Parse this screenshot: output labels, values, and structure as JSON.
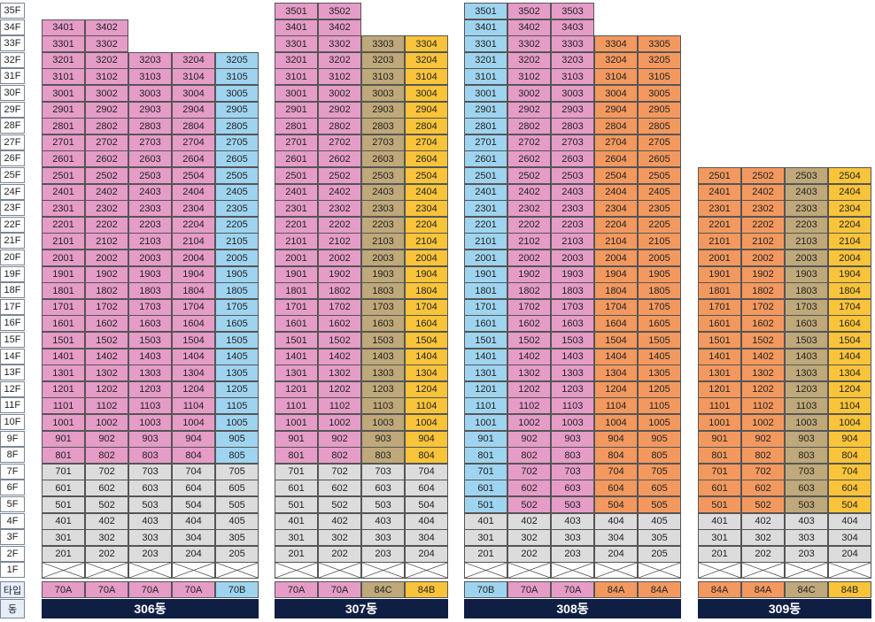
{
  "colors": {
    "70A": "#e59cc7",
    "70B": "#9fd4f0",
    "84A": "#f3995f",
    "84B": "#f9c43a",
    "84C": "#bfa879",
    "gray": "#dcdcdc"
  },
  "floor_labels": [
    "35F",
    "34F",
    "33F",
    "32F",
    "31F",
    "30F",
    "29F",
    "28F",
    "27F",
    "26F",
    "25F",
    "24F",
    "23F",
    "22F",
    "21F",
    "20F",
    "19F",
    "18F",
    "17F",
    "16F",
    "15F",
    "14F",
    "13F",
    "12F",
    "11F",
    "10F",
    "9F",
    "8F",
    "7F",
    "6F",
    "5F",
    "4F",
    "3F",
    "2F",
    "1F"
  ],
  "row_labels": {
    "type": "타입",
    "building": "동"
  },
  "buildings": [
    {
      "name": "306동",
      "lines": [
        {
          "type": "70A",
          "max_floor": 34
        },
        {
          "type": "70A",
          "max_floor": 34
        },
        {
          "type": "70A",
          "max_floor": 32
        },
        {
          "type": "70A",
          "max_floor": 32
        },
        {
          "type": "70B",
          "max_floor": 32
        }
      ],
      "gray_max_floor": 7,
      "colored_from_floor": 8
    },
    {
      "name": "307동",
      "lines": [
        {
          "type": "70A",
          "max_floor": 35
        },
        {
          "type": "70A",
          "max_floor": 35
        },
        {
          "type": "84C",
          "max_floor": 33
        },
        {
          "type": "84B",
          "max_floor": 33
        }
      ],
      "gray_max_floor": 7,
      "colored_from_floor": 8
    },
    {
      "name": "308동",
      "lines": [
        {
          "type": "70B",
          "max_floor": 35
        },
        {
          "type": "70A",
          "max_floor": 35
        },
        {
          "type": "70A",
          "max_floor": 35
        },
        {
          "type": "84A",
          "max_floor": 33
        },
        {
          "type": "84A",
          "max_floor": 33
        }
      ],
      "gray_max_floor": 4,
      "colored_from_floor": 5
    },
    {
      "name": "309동",
      "lines": [
        {
          "type": "84A",
          "max_floor": 25
        },
        {
          "type": "84A",
          "max_floor": 25
        },
        {
          "type": "84C",
          "max_floor": 25
        },
        {
          "type": "84B",
          "max_floor": 25
        }
      ],
      "gray_max_floor": 4,
      "colored_from_floor": 5
    }
  ]
}
